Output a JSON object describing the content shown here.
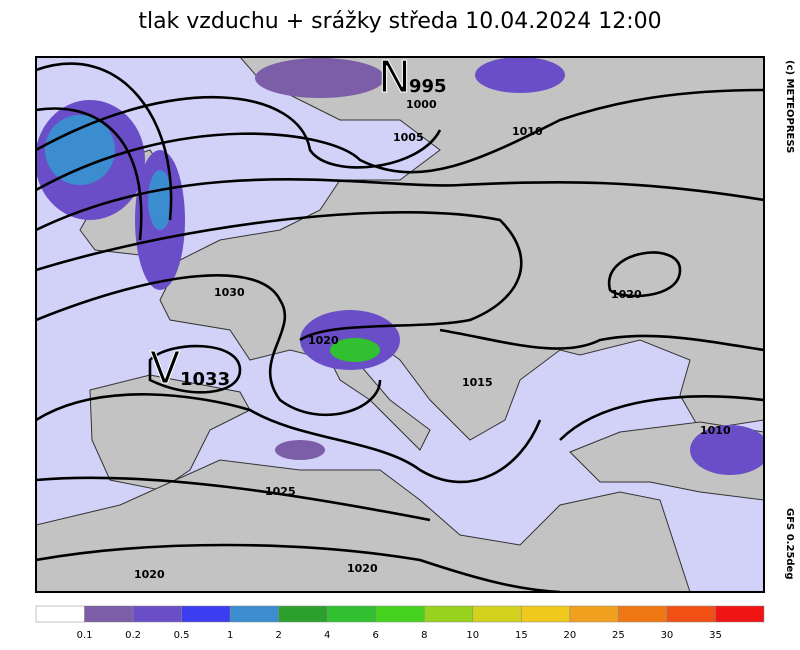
{
  "header": {
    "title": "tlak vzduchu + srážky  středa 10.04.2024 12:00"
  },
  "side": {
    "copyright": "(c) METEOPRESS",
    "model": "GFS 0.25deg"
  },
  "map": {
    "centers": [
      {
        "letter": "N",
        "value": "995"
      },
      {
        "letter": "V",
        "value": "1033"
      }
    ],
    "isobar_labels": [
      "1000",
      "1005",
      "1010",
      "1030",
      "1020",
      "1015",
      "1020",
      "1010",
      "1025",
      "1020",
      "1020"
    ]
  },
  "legend": {
    "labels": [
      "0.1",
      "0.2",
      "0.5",
      "1",
      "2",
      "4",
      "6",
      "8",
      "10",
      "15",
      "20",
      "25",
      "30",
      "35"
    ]
  }
}
